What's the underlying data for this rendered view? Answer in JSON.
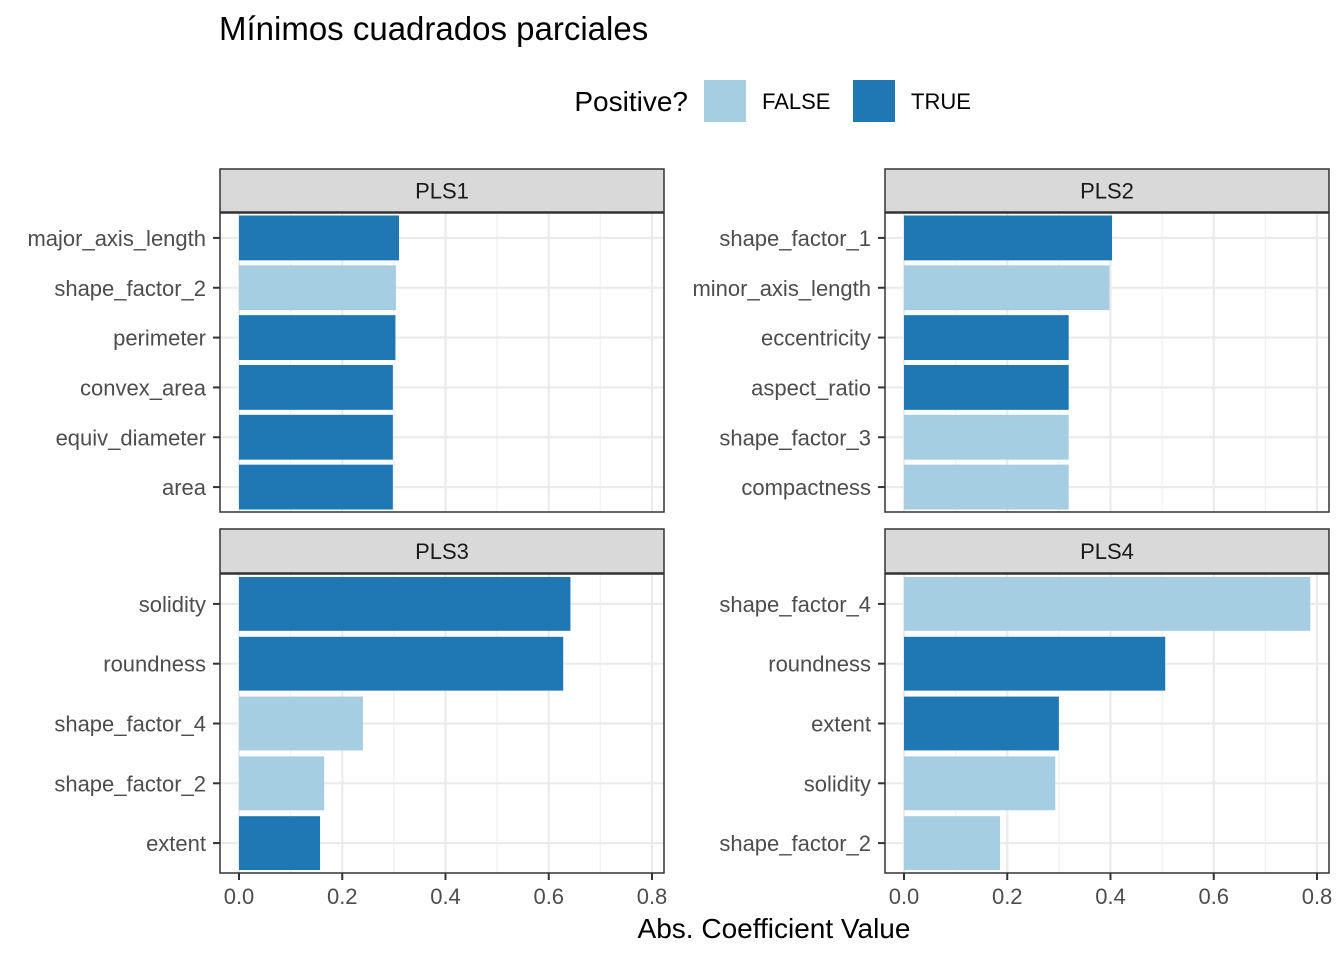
{
  "chart_data": {
    "type": "bar",
    "orientation": "horizontal",
    "title": "Mínimos cuadrados parciales",
    "xlabel": "Abs. Coefficient Value",
    "xlim": [
      0,
      0.8
    ],
    "xticks": [
      0.0,
      0.2,
      0.4,
      0.6,
      0.8
    ],
    "xtick_labels": [
      "0.0",
      "0.2",
      "0.4",
      "0.6",
      "0.8"
    ],
    "legend": {
      "title": "Positive?",
      "position": "top",
      "entries": [
        {
          "label": "FALSE",
          "color": "#a6cee3"
        },
        {
          "label": "TRUE",
          "color": "#1f78b4"
        }
      ]
    },
    "panels": [
      {
        "name": "PLS1",
        "bars": [
          {
            "term": "major_axis_length",
            "value": 0.31,
            "positive": true
          },
          {
            "term": "shape_factor_2",
            "value": 0.304,
            "positive": false
          },
          {
            "term": "perimeter",
            "value": 0.303,
            "positive": true
          },
          {
            "term": "convex_area",
            "value": 0.298,
            "positive": true
          },
          {
            "term": "equiv_diameter",
            "value": 0.298,
            "positive": true
          },
          {
            "term": "area",
            "value": 0.298,
            "positive": true
          }
        ]
      },
      {
        "name": "PLS2",
        "bars": [
          {
            "term": "shape_factor_1",
            "value": 0.403,
            "positive": true
          },
          {
            "term": "minor_axis_length",
            "value": 0.398,
            "positive": false
          },
          {
            "term": "eccentricity",
            "value": 0.319,
            "positive": true
          },
          {
            "term": "aspect_ratio",
            "value": 0.319,
            "positive": true
          },
          {
            "term": "shape_factor_3",
            "value": 0.319,
            "positive": false
          },
          {
            "term": "compactness",
            "value": 0.319,
            "positive": false
          }
        ]
      },
      {
        "name": "PLS3",
        "bars": [
          {
            "term": "solidity",
            "value": 0.642,
            "positive": true
          },
          {
            "term": "roundness",
            "value": 0.628,
            "positive": true
          },
          {
            "term": "shape_factor_4",
            "value": 0.24,
            "positive": false
          },
          {
            "term": "shape_factor_2",
            "value": 0.165,
            "positive": false
          },
          {
            "term": "extent",
            "value": 0.157,
            "positive": true
          }
        ]
      },
      {
        "name": "PLS4",
        "bars": [
          {
            "term": "shape_factor_4",
            "value": 0.787,
            "positive": false
          },
          {
            "term": "roundness",
            "value": 0.506,
            "positive": true
          },
          {
            "term": "extent",
            "value": 0.3,
            "positive": true
          },
          {
            "term": "solidity",
            "value": 0.293,
            "positive": false
          },
          {
            "term": "shape_factor_2",
            "value": 0.186,
            "positive": false
          }
        ]
      }
    ]
  }
}
